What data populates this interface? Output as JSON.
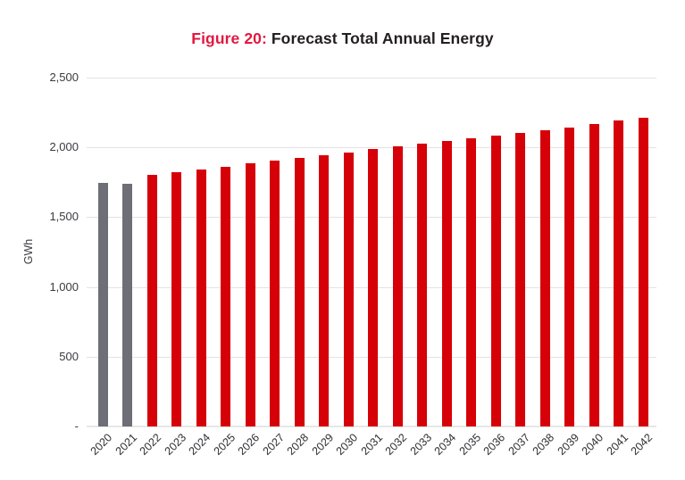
{
  "header": {
    "figure_label": "Figure 20:",
    "title": " Forecast Total Annual Energy"
  },
  "chart_data": {
    "type": "bar",
    "title": "Figure 20: Forecast Total Annual Energy",
    "xlabel": "",
    "ylabel": "GWh",
    "ylim": [
      0,
      2500
    ],
    "grid": true,
    "legend": "none",
    "ytick_values": [
      0,
      500,
      1000,
      1500,
      2000,
      2500
    ],
    "ytick_labels": [
      "-",
      "500",
      "1,000",
      "1,500",
      "2,000",
      "2,500"
    ],
    "categories": [
      "2020",
      "2021",
      "2022",
      "2023",
      "2024",
      "2025",
      "2026",
      "2027",
      "2028",
      "2029",
      "2030",
      "2031",
      "2032",
      "2033",
      "2034",
      "2035",
      "2036",
      "2037",
      "2038",
      "2039",
      "2040",
      "2041",
      "2042"
    ],
    "values": [
      1745,
      1740,
      1800,
      1820,
      1840,
      1862,
      1884,
      1904,
      1924,
      1946,
      1966,
      1986,
      2006,
      2026,
      2046,
      2066,
      2086,
      2104,
      2122,
      2144,
      2166,
      2190,
      2212
    ],
    "gray_bar_years": [
      "2020",
      "2021"
    ],
    "colors": {
      "bar_forecast": "#D60008",
      "bar_actual": "#6E6E77",
      "title_accent": "#E31840",
      "title_text": "#231F20",
      "gridline": "#E3E3E3",
      "tick_text": "#3A3A40"
    }
  }
}
